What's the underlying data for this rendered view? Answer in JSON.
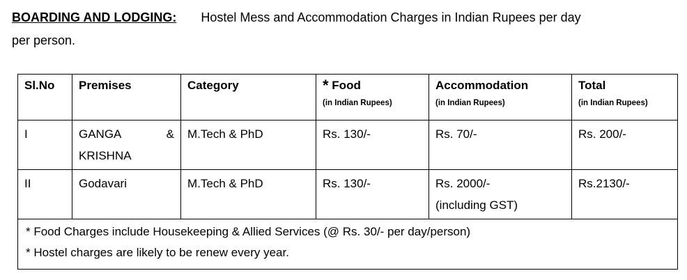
{
  "heading": {
    "label": "BOARDING AND LODGING:",
    "text": "Hostel Mess and Accommodation Charges in Indian Rupees per day",
    "text_cont": "per person."
  },
  "table": {
    "headers": [
      {
        "label": "Sl.No"
      },
      {
        "label": "Premises"
      },
      {
        "label": "Category"
      },
      {
        "star": "*",
        "label": "Food",
        "sub": "(in Indian Rupees)"
      },
      {
        "label": "Accommodation",
        "sub": "(in Indian Rupees)"
      },
      {
        "label": "Total",
        "sub": "(in Indian Rupees)"
      }
    ],
    "rows": [
      {
        "slno": "I",
        "premises_a": "GANGA",
        "premises_amp": "&",
        "premises_b": "KRISHNA",
        "category": "M.Tech & PhD",
        "food": "Rs. 130/-",
        "accommodation": "Rs. 70/-",
        "accommodation_note": "",
        "total": "Rs. 200/-"
      },
      {
        "slno": "II",
        "premises_a": "Godavari",
        "premises_amp": "",
        "premises_b": "",
        "category": "M.Tech & PhD",
        "food": "Rs. 130/-",
        "accommodation": "Rs. 2000/-",
        "accommodation_note": "(including GST)",
        "total": "Rs.2130/-"
      }
    ],
    "notes": [
      "* Food Charges include Housekeeping & Allied Services (@ Rs. 30/- per day/person)",
      "* Hostel charges are likely to be renew every year."
    ]
  }
}
